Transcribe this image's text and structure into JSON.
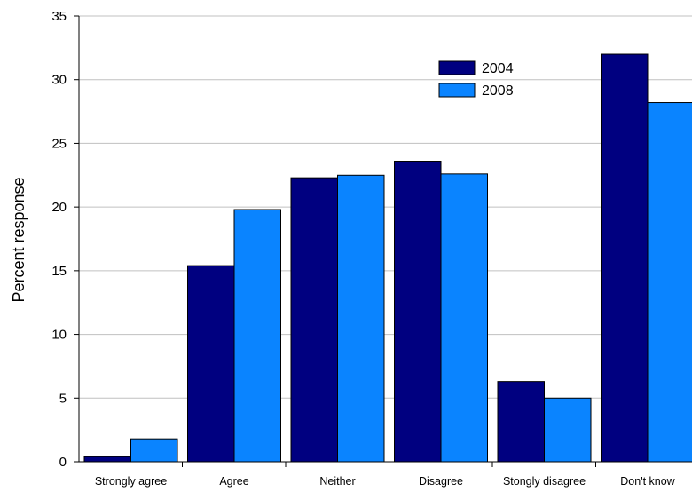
{
  "chart_data": {
    "type": "bar",
    "title": "",
    "xlabel": "",
    "ylabel": "Percent response",
    "ylim": [
      0,
      35
    ],
    "yticks": [
      0,
      5,
      10,
      15,
      20,
      25,
      30,
      35
    ],
    "grid": "horizontal",
    "legend_position": "top-right",
    "categories": [
      "Strongly agree",
      "Agree",
      "Neither",
      "Disagree",
      "Stongly disagree",
      "Don't know"
    ],
    "series": [
      {
        "name": "2004",
        "color": "#000080",
        "values": [
          0.4,
          15.4,
          22.3,
          23.6,
          6.3,
          32.0
        ]
      },
      {
        "name": "2008",
        "color": "#0A84FF",
        "values": [
          1.8,
          19.8,
          22.5,
          22.6,
          5.0,
          28.2
        ]
      }
    ]
  }
}
